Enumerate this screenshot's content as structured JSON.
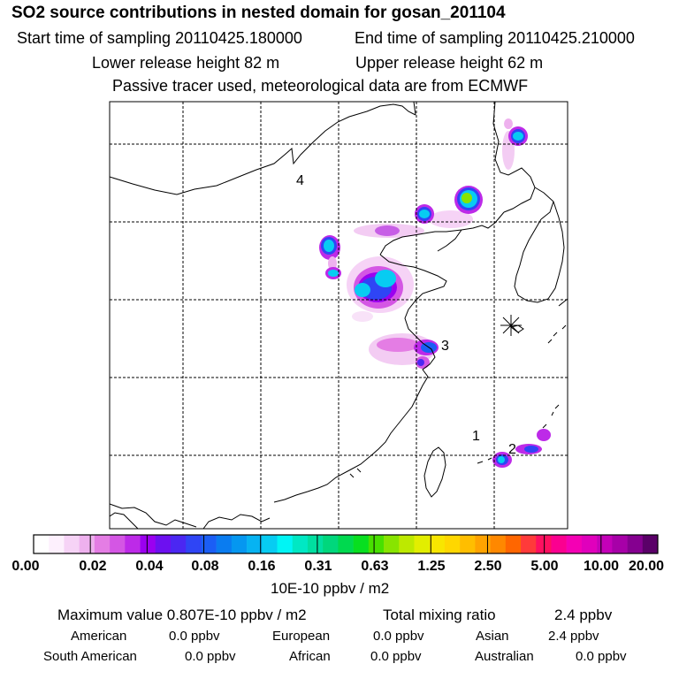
{
  "header": {
    "title": "SO2 source contributions in nested domain for gosan_201104",
    "start": "Start time of sampling 20110425.180000",
    "end": "End time of sampling 20110425.210000",
    "lower": "Lower release height   82 m",
    "upper": "Upper release height   62 m",
    "passive": "Passive tracer used, meteorological data are from ECMWF"
  },
  "chart_data": {
    "type": "heatmap",
    "title": "SO2 source contributions in nested domain for gosan_201104",
    "colorbar": {
      "ticks": [
        "0.00",
        "0.02",
        "0.04",
        "0.08",
        "0.16",
        "0.31",
        "0.63",
        "1.25",
        "2.50",
        "5.00",
        "10.00",
        "20.00"
      ],
      "units": "10E-10 ppbv / m2",
      "colors": [
        "#ffffff",
        "#fdf0fd",
        "#f6d3f6",
        "#eeb1ee",
        "#e47de4",
        "#d456e4",
        "#bd2ae8",
        "#9b00f0",
        "#6d10f0",
        "#4b27f2",
        "#2f45f5",
        "#1b5ef5",
        "#0a7cf0",
        "#0597f0",
        "#06b3f2",
        "#07ccf2",
        "#00f5f5",
        "#00e8c4",
        "#00dfa0",
        "#00d77c",
        "#00d94f",
        "#08df20",
        "#48e000",
        "#88e400",
        "#bde900",
        "#e2ee00",
        "#f8e600",
        "#ffd700",
        "#ffbe00",
        "#ffa300",
        "#ff8800",
        "#ff6600",
        "#ff3a3a",
        "#ff1060",
        "#fb0090",
        "#f400b4",
        "#e000bc",
        "#c400b8",
        "#a700a8",
        "#850090",
        "#5a0068"
      ]
    },
    "map_labels": [
      "4",
      "3",
      "1",
      "2"
    ],
    "receptor": "Gosan"
  },
  "summary": {
    "max": "Maximum value  0.807E-10 ppbv / m2",
    "total_label": "Total mixing ratio",
    "total_value": "2.4 ppbv",
    "regions": [
      {
        "name": "American",
        "value": "0.0 ppbv"
      },
      {
        "name": "European",
        "value": "0.0 ppbv"
      },
      {
        "name": "Asian",
        "value": "2.4 ppbv"
      },
      {
        "name": "South American",
        "value": "0.0 ppbv"
      },
      {
        "name": "African",
        "value": "0.0 ppbv"
      },
      {
        "name": "Australian",
        "value": "0.0 ppbv"
      }
    ]
  }
}
